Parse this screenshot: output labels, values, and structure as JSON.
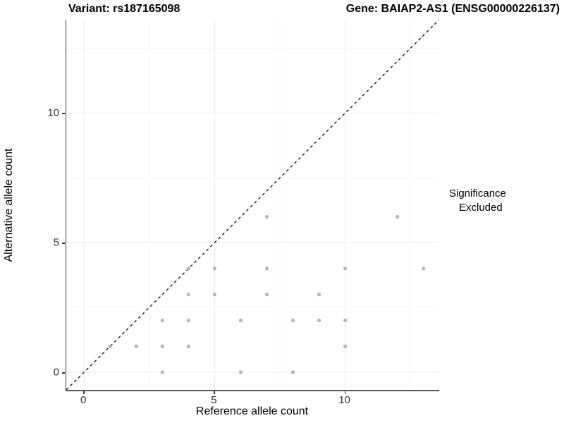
{
  "header": {
    "title_left": "Variant: rs187165098",
    "title_right": "Gene: BAIAP2-AS1 (ENSG00000226137)"
  },
  "chart_data": {
    "type": "scatter",
    "xlabel": "Reference allele count",
    "ylabel": "Alternative allele count",
    "xlim": [
      -0.68,
      13.6
    ],
    "ylim": [
      -0.68,
      13.6
    ],
    "x_ticks": [
      0,
      5,
      10
    ],
    "y_ticks": [
      0,
      5,
      10
    ],
    "x_minor_ticks": [
      2.5,
      7.5,
      12.5
    ],
    "y_minor_ticks": [
      2.5,
      7.5,
      12.5
    ],
    "grid": true,
    "identity_line": {
      "style": "dashed",
      "slope": 1,
      "intercept": 0,
      "color": "#1a1a1a"
    },
    "legend": {
      "title": "Significance",
      "position": "right",
      "entries": [
        {
          "label": "Excluded",
          "color": "#b5b5b5"
        }
      ]
    },
    "series": [
      {
        "name": "Excluded",
        "color": "#b5b5b5",
        "points": [
          [
            1,
            1
          ],
          [
            2,
            1
          ],
          [
            3,
            0
          ],
          [
            3,
            1
          ],
          [
            3,
            2
          ],
          [
            4,
            1
          ],
          [
            4,
            2
          ],
          [
            4,
            3
          ],
          [
            4,
            4
          ],
          [
            5,
            3
          ],
          [
            5,
            4
          ],
          [
            6,
            0
          ],
          [
            6,
            2
          ],
          [
            7,
            3
          ],
          [
            7,
            4
          ],
          [
            7,
            6
          ],
          [
            8,
            0
          ],
          [
            8,
            2
          ],
          [
            9,
            2
          ],
          [
            9,
            3
          ],
          [
            10,
            1
          ],
          [
            10,
            2
          ],
          [
            10,
            4
          ],
          [
            12,
            6
          ],
          [
            13,
            4
          ]
        ]
      }
    ],
    "colors": {
      "grid_major": "#ebebeb",
      "grid_minor": "#f7f7f7",
      "axis_line": "#333333",
      "tick_text": "#333333",
      "point": "#b5b5b5"
    }
  }
}
